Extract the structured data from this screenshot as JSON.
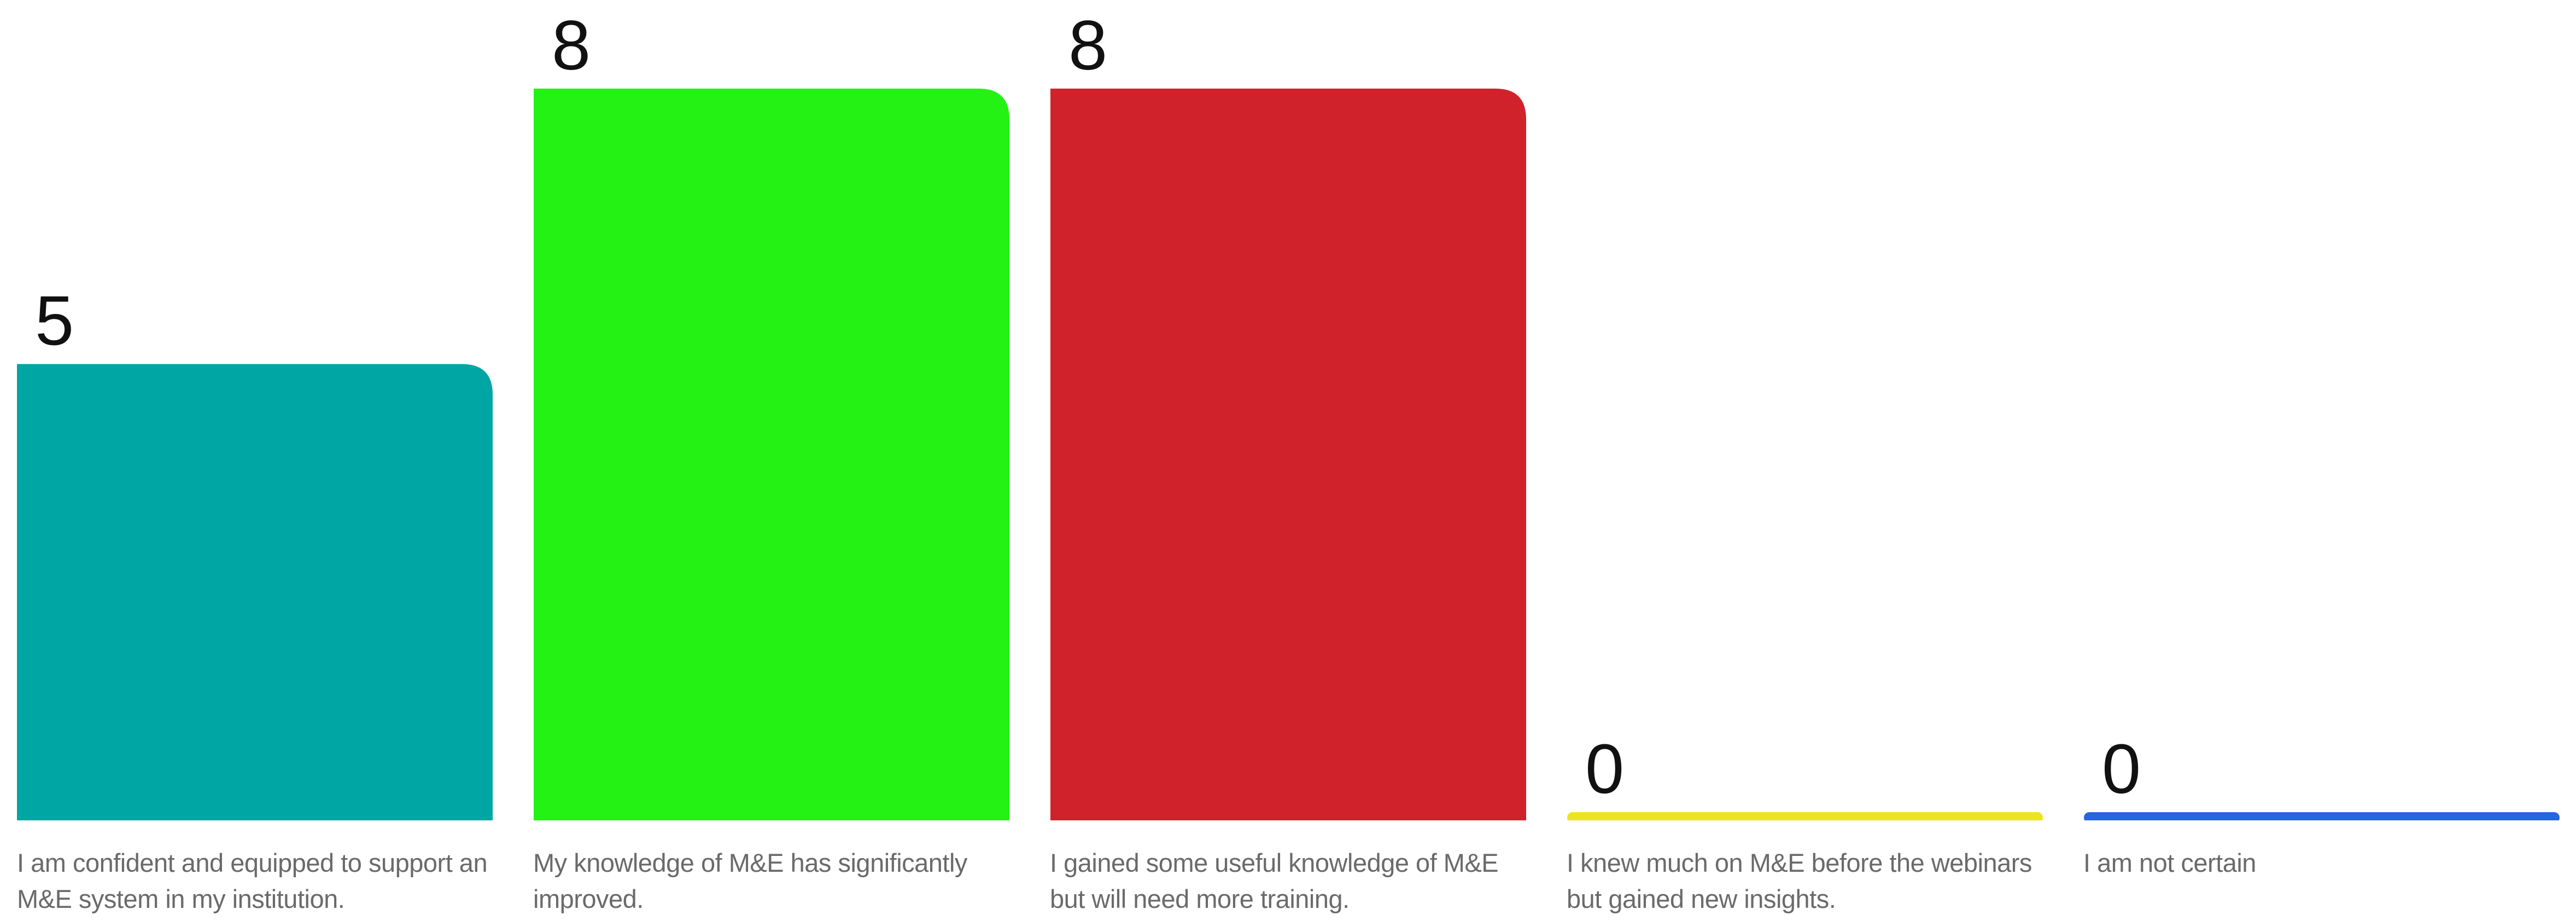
{
  "chart_data": {
    "type": "bar",
    "categories": [
      "I am confident and equipped to support an M&E system in my institution.",
      "My knowledge of M&E has significantly improved.",
      "I gained some useful knowledge of M&E but will need more training.",
      "I knew much on M&E before the webinars but gained new insights.",
      "I am not certain"
    ],
    "values": [
      5,
      8,
      8,
      0,
      0
    ],
    "value_labels": [
      "5",
      "8",
      "8",
      "0",
      "0"
    ],
    "colors": [
      "#00a6a4",
      "#24f214",
      "#d0222b",
      "#ece41e",
      "#2764e0"
    ],
    "title": "",
    "xlabel": "",
    "ylabel": "",
    "ylim": [
      0,
      8
    ],
    "grid": false,
    "legend": "none"
  }
}
